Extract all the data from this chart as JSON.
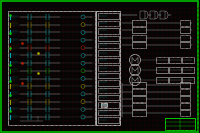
{
  "bg_color": "#050505",
  "border_color": "#00bb00",
  "grid_dot_color": "#3a0000",
  "line_color": "#cccccc",
  "cyan_color": "#00cccc",
  "yellow_color": "#bbbb00",
  "red_color": "#cc2200",
  "green_color": "#00cc00",
  "magenta_color": "#cc00cc",
  "white_color": "#ffffff",
  "fig_width": 2.0,
  "fig_height": 1.33,
  "dpi": 100,
  "lw_main": 0.5,
  "lw_thin": 0.3
}
